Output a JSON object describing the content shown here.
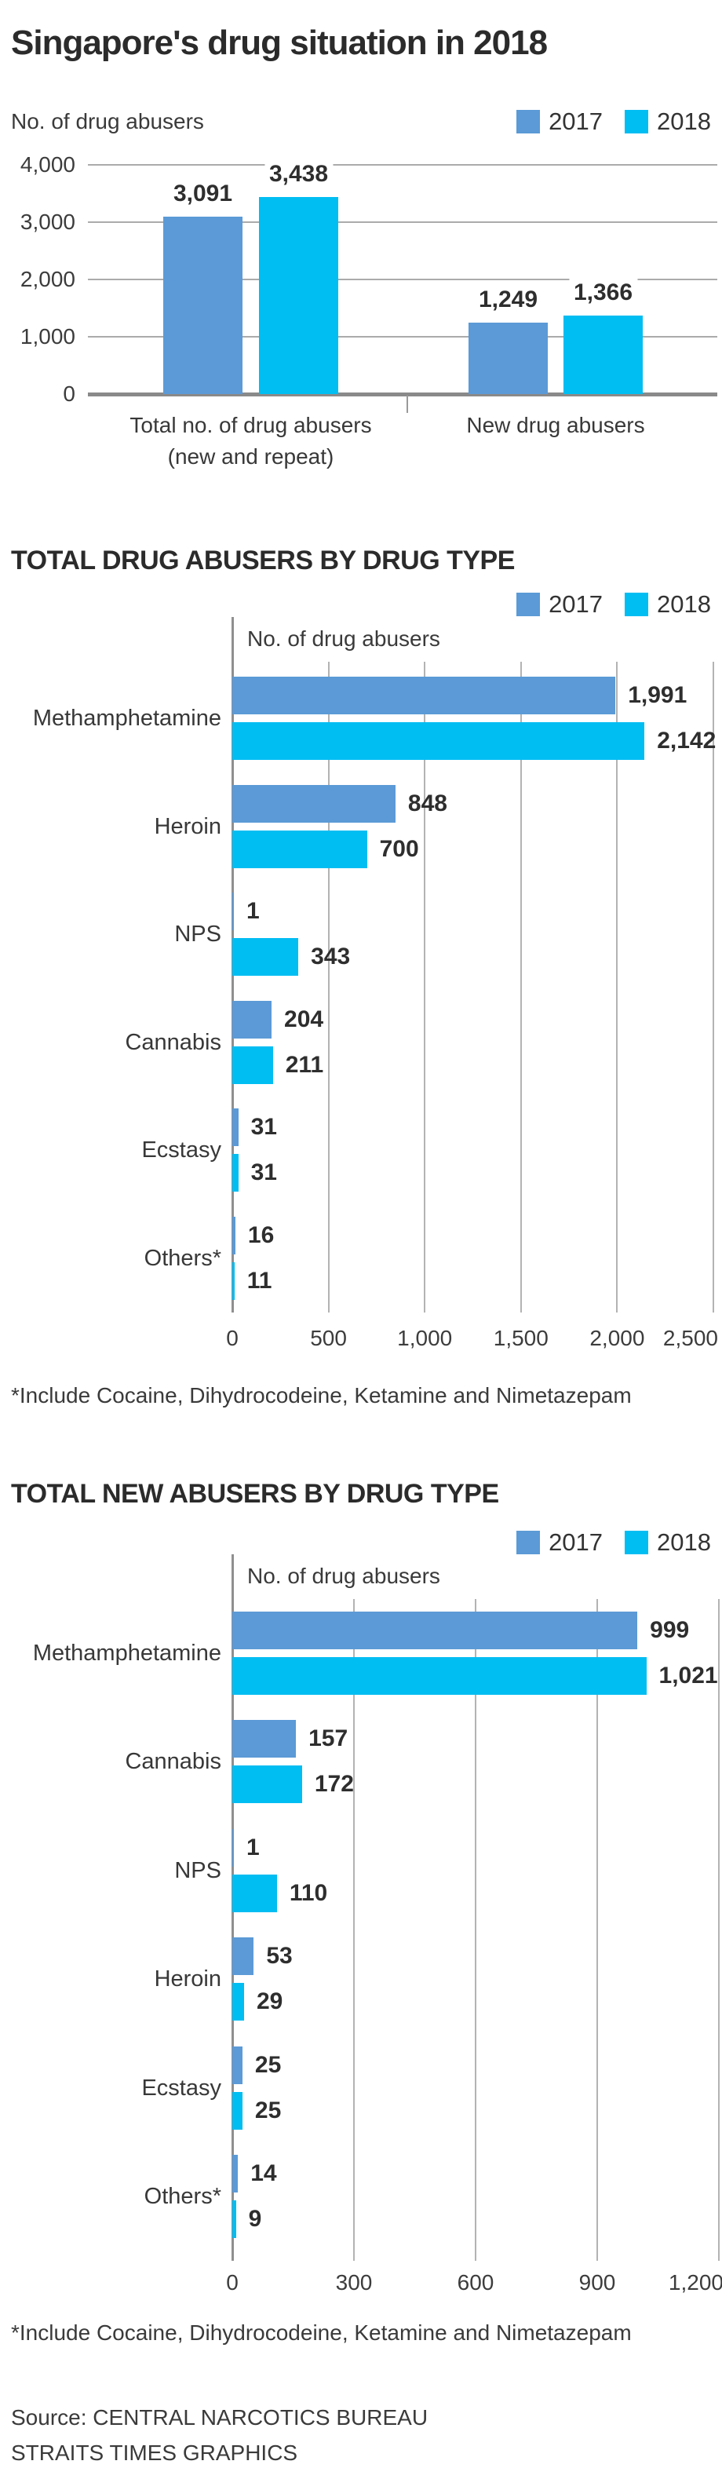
{
  "title": "Singapore's drug situation in 2018",
  "legend": {
    "label_2017": "2017",
    "label_2018": "2018"
  },
  "colors": {
    "c2017": "#5b9ad6",
    "c2018": "#00bdf2",
    "text_dark": "#2b2b2b",
    "grid": "#ababab",
    "axis": "#8a8a8a"
  },
  "source": {
    "line1": "Source: CENTRAL NARCOTICS BUREAU",
    "line2": "STRAITS TIMES GRAPHICS"
  },
  "chart_data": [
    {
      "type": "bar",
      "orientation": "vertical",
      "title": "",
      "axis_label": "No. of drug abusers",
      "categories": [
        "Total no. of drug abusers (new and repeat)",
        "New drug abusers"
      ],
      "category_lines": [
        [
          "Total no. of drug abusers",
          "(new and repeat)"
        ],
        [
          "New drug abusers"
        ]
      ],
      "series": [
        {
          "name": "2017",
          "values": [
            3091,
            1249
          ]
        },
        {
          "name": "2018",
          "values": [
            3438,
            1366
          ]
        }
      ],
      "value_labels": [
        [
          "3,091",
          "1,249"
        ],
        [
          "3,438",
          "1,366"
        ]
      ],
      "ylim": [
        0,
        4000
      ],
      "yticks": [
        "0",
        "1,000",
        "2,000",
        "3,000",
        "4,000"
      ],
      "grid": true,
      "legend_position": "top-right"
    },
    {
      "type": "bar",
      "orientation": "horizontal",
      "title": "TOTAL DRUG ABUSERS BY DRUG TYPE",
      "axis_label": "No. of drug abusers",
      "categories": [
        "Methamphetamine",
        "Heroin",
        "NPS",
        "Cannabis",
        "Ecstasy",
        "Others*"
      ],
      "series": [
        {
          "name": "2017",
          "values": [
            1991,
            848,
            1,
            204,
            31,
            16
          ]
        },
        {
          "name": "2018",
          "values": [
            2142,
            700,
            343,
            211,
            31,
            11
          ]
        }
      ],
      "value_labels": [
        [
          "1,991",
          "848",
          "1",
          "204",
          "31",
          "16"
        ],
        [
          "2,142",
          "700",
          "343",
          "211",
          "31",
          "11"
        ]
      ],
      "xlim": [
        0,
        2500
      ],
      "xticks": [
        "0",
        "500",
        "1,000",
        "1,500",
        "2,000",
        "2,500"
      ],
      "grid": true,
      "legend_position": "top-right",
      "footnote": "*Include Cocaine, Dihydrocodeine, Ketamine and Nimetazepam"
    },
    {
      "type": "bar",
      "orientation": "horizontal",
      "title": "TOTAL NEW ABUSERS BY DRUG TYPE",
      "axis_label": "No. of drug abusers",
      "categories": [
        "Methamphetamine",
        "Cannabis",
        "NPS",
        "Heroin",
        "Ecstasy",
        "Others*"
      ],
      "series": [
        {
          "name": "2017",
          "values": [
            999,
            157,
            1,
            53,
            25,
            14
          ]
        },
        {
          "name": "2018",
          "values": [
            1021,
            172,
            110,
            29,
            25,
            9
          ]
        }
      ],
      "value_labels": [
        [
          "999",
          "157",
          "1",
          "53",
          "25",
          "14"
        ],
        [
          "1,021",
          "172",
          "110",
          "29",
          "25",
          "9"
        ]
      ],
      "xlim": [
        0,
        1200
      ],
      "xticks": [
        "0",
        "300",
        "600",
        "900",
        "1,200"
      ],
      "grid": true,
      "legend_position": "top-right",
      "footnote": "*Include Cocaine, Dihydrocodeine, Ketamine and Nimetazepam"
    }
  ]
}
